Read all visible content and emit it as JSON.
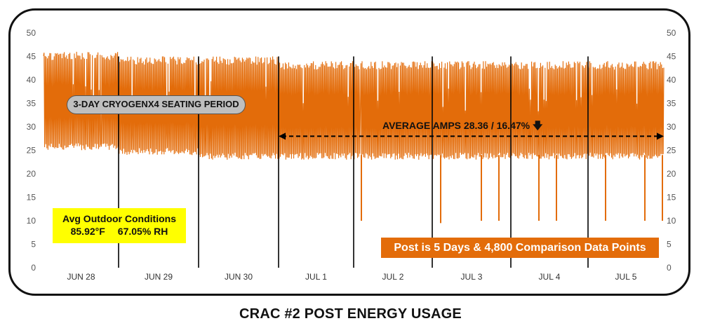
{
  "chart_data": {
    "type": "line",
    "title": "CRAC #2 POST ENERGY USAGE",
    "xlabel": "",
    "ylabel": "",
    "ylim": [
      0,
      50
    ],
    "y_ticks": [
      0,
      5,
      10,
      15,
      20,
      25,
      30,
      35,
      40,
      45,
      50
    ],
    "secondary_y_ticks": [
      0,
      5,
      10,
      15,
      20,
      25,
      30,
      35,
      40,
      45,
      50
    ],
    "categories": [
      "JUN 28",
      "JUN 29",
      "JUN 30",
      "JUL 1",
      "JUL 2",
      "JUL 3",
      "JUL 4",
      "JUL 5"
    ],
    "series_color": "#e36c0a",
    "grid": false,
    "series": [
      {
        "envelope_by_day": [
          {
            "day": "JUN 28",
            "low": 25,
            "high": 46
          },
          {
            "day": "JUN 29",
            "low": 24,
            "high": 45
          },
          {
            "day": "JUN 30",
            "low": 23,
            "high": 45
          },
          {
            "day": "JUL 1",
            "low": 23,
            "high": 44
          },
          {
            "day": "JUL 2",
            "low": 23,
            "high": 44
          },
          {
            "day": "JUL 3",
            "low": 23,
            "high": 44
          },
          {
            "day": "JUL 4",
            "low": 23,
            "high": 44
          },
          {
            "day": "JUL 5",
            "low": 23,
            "high": 44
          }
        ],
        "dips": [
          {
            "x": "JUL 2",
            "value": 10
          },
          {
            "x": "JUL 3",
            "value": 9.5
          },
          {
            "x": "JUL 3",
            "value": 10
          },
          {
            "x": "JUL 3",
            "value": 10
          },
          {
            "x": "JUL 4",
            "value": 10
          },
          {
            "x": "JUL 4",
            "value": 10
          },
          {
            "x": "JUL 5",
            "value": 10
          },
          {
            "x": "JUL 5",
            "value": 10
          },
          {
            "x": "JUL 5",
            "value": 10
          }
        ]
      }
    ],
    "annotations": {
      "seating_period": "3-DAY CRYOGENX4 SEATING PERIOD",
      "average": "AVERAGE AMPS  28.36 / 16.47%",
      "average_arrow_value": 28,
      "conditions_title": "Avg Outdoor Conditions",
      "conditions_temp": "85.92°F",
      "conditions_rh": "67.05% RH",
      "post_note": "Post is 5 Days & 4,800 Comparison Data Points"
    }
  }
}
